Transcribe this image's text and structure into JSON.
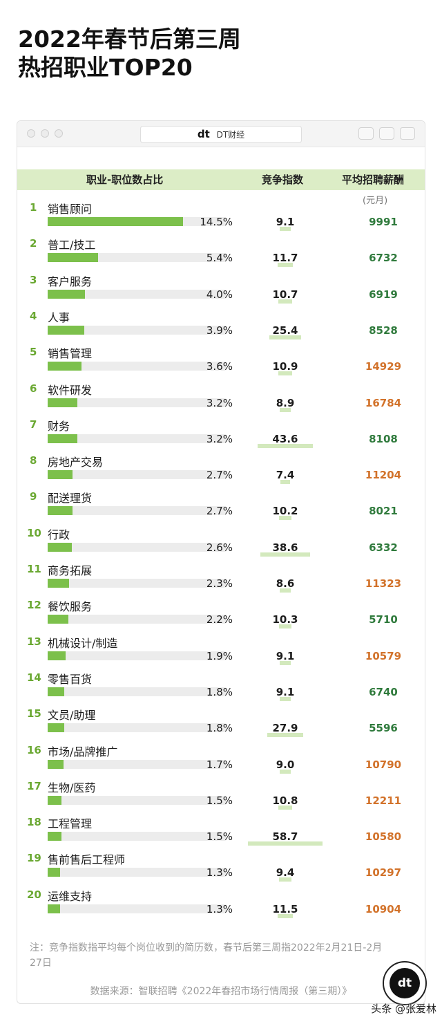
{
  "title": {
    "line1": "2022年春节后第三周",
    "line2": "热招职业TOP20"
  },
  "window": {
    "brand": "DT财经",
    "brand_logo": "dt"
  },
  "colors": {
    "bar": "#7cc04b",
    "track": "#ececec",
    "header_bg": "#dcedc6",
    "salary_green": "#2f7a3c",
    "salary_orange": "#d2722a",
    "rank": "#6aa832"
  },
  "chart_data": {
    "type": "table",
    "columns": [
      "职业-职位数占比",
      "竞争指数",
      "平均招聘薪酬"
    ],
    "salary_unit": "(元月)",
    "rows": [
      {
        "rank": "1",
        "job": "销售顾问",
        "share": 14.5,
        "share_label": "14.5%",
        "competition": 9.1,
        "competition_label": "9.1",
        "salary": 9991,
        "salary_label": "9991",
        "salary_color": "green"
      },
      {
        "rank": "2",
        "job": "普工/技工",
        "share": 5.4,
        "share_label": "5.4%",
        "competition": 11.7,
        "competition_label": "11.7",
        "salary": 6732,
        "salary_label": "6732",
        "salary_color": "green"
      },
      {
        "rank": "3",
        "job": "客户服务",
        "share": 4.0,
        "share_label": "4.0%",
        "competition": 10.7,
        "competition_label": "10.7",
        "salary": 6919,
        "salary_label": "6919",
        "salary_color": "green"
      },
      {
        "rank": "4",
        "job": "人事",
        "share": 3.9,
        "share_label": "3.9%",
        "competition": 25.4,
        "competition_label": "25.4",
        "salary": 8528,
        "salary_label": "8528",
        "salary_color": "green"
      },
      {
        "rank": "5",
        "job": "销售管理",
        "share": 3.6,
        "share_label": "3.6%",
        "competition": 10.9,
        "competition_label": "10.9",
        "salary": 14929,
        "salary_label": "14929",
        "salary_color": "orange"
      },
      {
        "rank": "6",
        "job": "软件研发",
        "share": 3.2,
        "share_label": "3.2%",
        "competition": 8.9,
        "competition_label": "8.9",
        "salary": 16784,
        "salary_label": "16784",
        "salary_color": "orange"
      },
      {
        "rank": "7",
        "job": "财务",
        "share": 3.2,
        "share_label": "3.2%",
        "competition": 43.6,
        "competition_label": "43.6",
        "salary": 8108,
        "salary_label": "8108",
        "salary_color": "green"
      },
      {
        "rank": "8",
        "job": "房地产交易",
        "share": 2.7,
        "share_label": "2.7%",
        "competition": 7.4,
        "competition_label": "7.4",
        "salary": 11204,
        "salary_label": "11204",
        "salary_color": "orange"
      },
      {
        "rank": "9",
        "job": "配送理货",
        "share": 2.7,
        "share_label": "2.7%",
        "competition": 10.2,
        "competition_label": "10.2",
        "salary": 8021,
        "salary_label": "8021",
        "salary_color": "green"
      },
      {
        "rank": "10",
        "job": "行政",
        "share": 2.6,
        "share_label": "2.6%",
        "competition": 38.6,
        "competition_label": "38.6",
        "salary": 6332,
        "salary_label": "6332",
        "salary_color": "green"
      },
      {
        "rank": "11",
        "job": "商务拓展",
        "share": 2.3,
        "share_label": "2.3%",
        "competition": 8.6,
        "competition_label": "8.6",
        "salary": 11323,
        "salary_label": "11323",
        "salary_color": "orange"
      },
      {
        "rank": "12",
        "job": "餐饮服务",
        "share": 2.2,
        "share_label": "2.2%",
        "competition": 10.3,
        "competition_label": "10.3",
        "salary": 5710,
        "salary_label": "5710",
        "salary_color": "green"
      },
      {
        "rank": "13",
        "job": "机械设计/制造",
        "share": 1.9,
        "share_label": "1.9%",
        "competition": 9.1,
        "competition_label": "9.1",
        "salary": 10579,
        "salary_label": "10579",
        "salary_color": "orange"
      },
      {
        "rank": "14",
        "job": "零售百货",
        "share": 1.8,
        "share_label": "1.8%",
        "competition": 9.1,
        "competition_label": "9.1",
        "salary": 6740,
        "salary_label": "6740",
        "salary_color": "green"
      },
      {
        "rank": "15",
        "job": "文员/助理",
        "share": 1.8,
        "share_label": "1.8%",
        "competition": 27.9,
        "competition_label": "27.9",
        "salary": 5596,
        "salary_label": "5596",
        "salary_color": "green"
      },
      {
        "rank": "16",
        "job": "市场/品牌推广",
        "share": 1.7,
        "share_label": "1.7%",
        "competition": 9.0,
        "competition_label": "9.0",
        "salary": 10790,
        "salary_label": "10790",
        "salary_color": "orange"
      },
      {
        "rank": "17",
        "job": "生物/医药",
        "share": 1.5,
        "share_label": "1.5%",
        "competition": 10.8,
        "competition_label": "10.8",
        "salary": 12211,
        "salary_label": "12211",
        "salary_color": "orange"
      },
      {
        "rank": "18",
        "job": "工程管理",
        "share": 1.5,
        "share_label": "1.5%",
        "competition": 58.7,
        "competition_label": "58.7",
        "salary": 10580,
        "salary_label": "10580",
        "salary_color": "orange"
      },
      {
        "rank": "19",
        "job": "售前售后工程师",
        "share": 1.3,
        "share_label": "1.3%",
        "competition": 9.4,
        "competition_label": "9.4",
        "salary": 10297,
        "salary_label": "10297",
        "salary_color": "orange"
      },
      {
        "rank": "20",
        "job": "运维支持",
        "share": 1.3,
        "share_label": "1.3%",
        "competition": 11.5,
        "competition_label": "11.5",
        "salary": 10904,
        "salary_label": "10904",
        "salary_color": "orange"
      }
    ]
  },
  "note": "注：竞争指数指平均每个岗位收到的简历数，春节后第三周指2022年2月21日-2月27日",
  "source": "数据来源：智联招聘《2022年春招市场行情周报（第三期）》",
  "fab_logo": "dt",
  "credit": "头条 @张爱林"
}
